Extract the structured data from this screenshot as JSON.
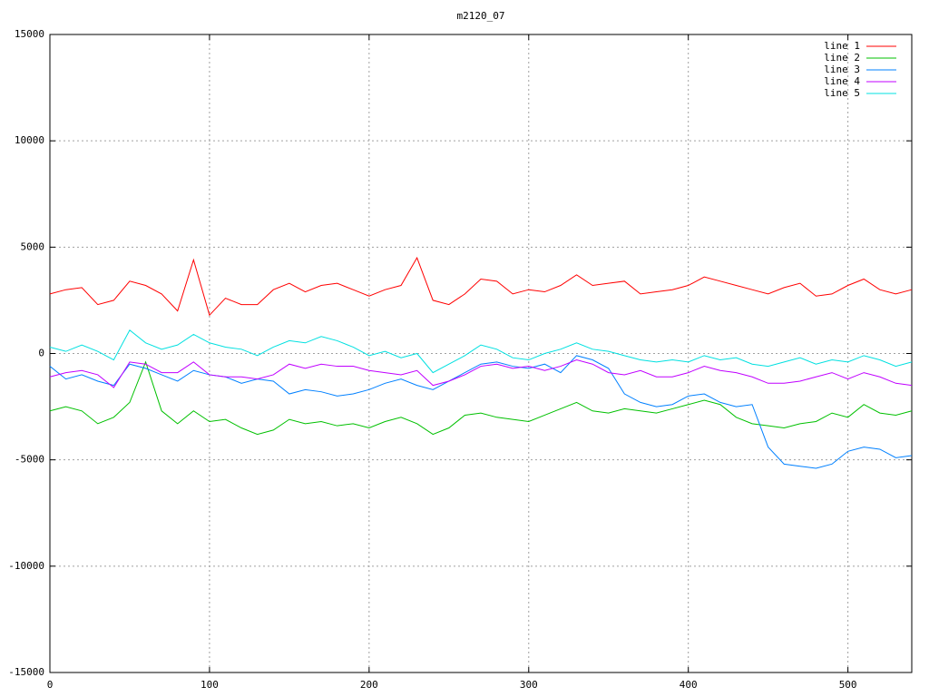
{
  "chart_data": {
    "type": "line",
    "title": "m2120_07",
    "x": [
      0,
      10,
      20,
      30,
      40,
      50,
      60,
      70,
      80,
      90,
      100,
      110,
      120,
      130,
      140,
      150,
      160,
      170,
      180,
      190,
      200,
      210,
      220,
      230,
      240,
      250,
      260,
      270,
      280,
      290,
      300,
      310,
      320,
      330,
      340,
      350,
      360,
      370,
      380,
      390,
      400,
      410,
      420,
      430,
      440,
      450,
      460,
      470,
      480,
      490,
      500,
      510,
      520,
      530,
      540
    ],
    "series": [
      {
        "name": "line 1",
        "color": "#ff0000",
        "values": [
          2800,
          3000,
          3100,
          2300,
          2500,
          3400,
          3200,
          2800,
          2000,
          4400,
          1800,
          2600,
          2300,
          2300,
          3000,
          3300,
          2900,
          3200,
          3300,
          3000,
          2700,
          3000,
          3200,
          4500,
          2500,
          2300,
          2800,
          3500,
          3400,
          2800,
          3000,
          2900,
          3200,
          3700,
          3200,
          3300,
          3400,
          2800,
          2900,
          3000,
          3200,
          3600,
          3400,
          3200,
          3000,
          2800,
          3100,
          3300,
          2700,
          2800,
          3200,
          3500,
          3000,
          2800,
          3000
        ]
      },
      {
        "name": "line 2",
        "color": "#00c000",
        "values": [
          -2700,
          -2500,
          -2700,
          -3300,
          -3000,
          -2300,
          -400,
          -2700,
          -3300,
          -2700,
          -3200,
          -3100,
          -3500,
          -3800,
          -3600,
          -3100,
          -3300,
          -3200,
          -3400,
          -3300,
          -3500,
          -3200,
          -3000,
          -3300,
          -3800,
          -3500,
          -2900,
          -2800,
          -3000,
          -3100,
          -3200,
          -2900,
          -2600,
          -2300,
          -2700,
          -2800,
          -2600,
          -2700,
          -2800,
          -2600,
          -2400,
          -2200,
          -2400,
          -3000,
          -3300,
          -3400,
          -3500,
          -3300,
          -3200,
          -2800,
          -3000,
          -2400,
          -2800,
          -2900,
          -2700
        ]
      },
      {
        "name": "line 3",
        "color": "#0080ff",
        "values": [
          -600,
          -1200,
          -1000,
          -1300,
          -1500,
          -500,
          -700,
          -1000,
          -1300,
          -800,
          -1000,
          -1100,
          -1400,
          -1200,
          -1300,
          -1900,
          -1700,
          -1800,
          -2000,
          -1900,
          -1700,
          -1400,
          -1200,
          -1500,
          -1700,
          -1300,
          -900,
          -500,
          -400,
          -600,
          -700,
          -500,
          -900,
          -100,
          -300,
          -700,
          -1900,
          -2300,
          -2500,
          -2400,
          -2000,
          -1900,
          -2300,
          -2500,
          -2400,
          -4400,
          -5200,
          -5300,
          -5400,
          -5200,
          -4600,
          -4400,
          -4500,
          -4900,
          -4800
        ]
      },
      {
        "name": "line 4",
        "color": "#c000ff",
        "values": [
          -1100,
          -900,
          -800,
          -1000,
          -1600,
          -400,
          -500,
          -900,
          -900,
          -400,
          -1000,
          -1100,
          -1100,
          -1200,
          -1000,
          -500,
          -700,
          -500,
          -600,
          -600,
          -800,
          -900,
          -1000,
          -800,
          -1500,
          -1300,
          -1000,
          -600,
          -500,
          -700,
          -600,
          -800,
          -600,
          -300,
          -500,
          -900,
          -1000,
          -800,
          -1100,
          -1100,
          -900,
          -600,
          -800,
          -900,
          -1100,
          -1400,
          -1400,
          -1300,
          -1100,
          -900,
          -1200,
          -900,
          -1100,
          -1400,
          -1500
        ]
      },
      {
        "name": "line 5",
        "color": "#00e0e0",
        "values": [
          300,
          100,
          400,
          100,
          -300,
          1100,
          500,
          200,
          400,
          900,
          500,
          300,
          200,
          -100,
          300,
          600,
          500,
          800,
          600,
          300,
          -100,
          100,
          -200,
          0,
          -900,
          -500,
          -100,
          400,
          200,
          -200,
          -300,
          0,
          200,
          500,
          200,
          100,
          -100,
          -300,
          -400,
          -300,
          -400,
          -100,
          -300,
          -200,
          -500,
          -600,
          -400,
          -200,
          -500,
          -300,
          -400,
          -100,
          -300,
          -600,
          -400
        ]
      }
    ],
    "xlim": [
      0,
      540
    ],
    "xticks": [
      0,
      100,
      200,
      300,
      400,
      500
    ],
    "ylim": [
      -15000,
      15000
    ],
    "yticks": [
      -15000,
      -10000,
      -5000,
      0,
      5000,
      10000,
      15000
    ],
    "grid": true,
    "legend": "top-right"
  }
}
